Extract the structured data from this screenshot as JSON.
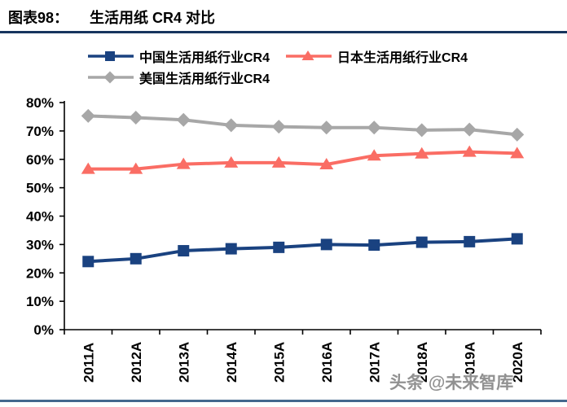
{
  "header": {
    "figure_label": "图表98：",
    "title": "生活用纸 CR4 对比"
  },
  "watermark": "头条 @未来智库",
  "colors": {
    "title_rule": "#17355E",
    "bottom_rule": "#44688E",
    "axis": "#000000",
    "china_series": "#1A4280",
    "japan_series": "#FA6D64",
    "us_series": "#A7A7A7"
  },
  "chart_data": {
    "type": "line",
    "title": "生活用纸 CR4 对比",
    "categories": [
      "2011A",
      "2012A",
      "2013A",
      "2014A",
      "2015A",
      "2016A",
      "2017A",
      "2018A",
      "2019A",
      "2020A"
    ],
    "series": [
      {
        "key": "china",
        "name": "中国生活用纸行业CR4",
        "color": "#1A4280",
        "marker": "square",
        "values": [
          24,
          25,
          27.8,
          28.5,
          29,
          30,
          29.8,
          30.8,
          31,
          32
        ]
      },
      {
        "key": "japan",
        "name": "日本生活用纸行业CR4",
        "color": "#FA6D64",
        "marker": "triangle",
        "values": [
          56.6,
          56.6,
          58.3,
          58.8,
          58.8,
          58.2,
          61.3,
          62,
          62.6,
          62.1
        ]
      },
      {
        "key": "us",
        "name": "美国生活用纸行业CR4",
        "color": "#A7A7A7",
        "marker": "diamond",
        "values": [
          75.3,
          74.7,
          73.9,
          72,
          71.5,
          71.2,
          71.2,
          70.3,
          70.5,
          68.7
        ]
      }
    ],
    "xlabel": "",
    "ylabel": "",
    "ylim": [
      0,
      80
    ],
    "ytick_step": 10,
    "ytick_format": "percent",
    "grid": false,
    "legend_position": "top"
  }
}
